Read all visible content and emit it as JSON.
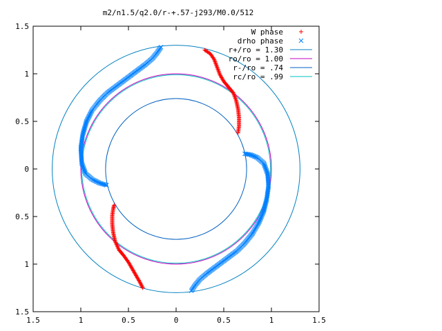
{
  "chart_data": {
    "type": "scatter",
    "title": "m2/n1.5/q2.0/r-+.57-j293/M0.0/512",
    "xlim": [
      -1.5,
      1.5
    ],
    "ylim": [
      -1.5,
      1.5
    ],
    "x_ticks": [
      {
        "value": -1.5,
        "label": "1.5"
      },
      {
        "value": -1.0,
        "label": "1"
      },
      {
        "value": -0.5,
        "label": "0.5"
      },
      {
        "value": 0,
        "label": "0"
      },
      {
        "value": 0.5,
        "label": "0.5"
      },
      {
        "value": 1.0,
        "label": "1"
      },
      {
        "value": 1.5,
        "label": "1.5"
      }
    ],
    "y_ticks": [
      {
        "value": 1.5,
        "label": "1.5"
      },
      {
        "value": 1.0,
        "label": "1"
      },
      {
        "value": 0.5,
        "label": "0.5"
      },
      {
        "value": 0,
        "label": "0"
      },
      {
        "value": -0.5,
        "label": "0.5"
      },
      {
        "value": -1.0,
        "label": "1"
      },
      {
        "value": -1.5,
        "label": "1.5"
      }
    ],
    "grid": false,
    "legend_position": "top-right",
    "series": [
      {
        "name": "W phase",
        "marker": "plus",
        "color": "#ff0000",
        "segments": [
          [
            [
              0.3,
              1.25
            ],
            [
              0.36,
              1.21
            ],
            [
              0.4,
              1.15
            ],
            [
              0.43,
              1.07
            ],
            [
              0.46,
              0.99
            ],
            [
              0.5,
              0.92
            ],
            [
              0.55,
              0.86
            ],
            [
              0.6,
              0.8
            ],
            [
              0.63,
              0.72
            ],
            [
              0.65,
              0.63
            ],
            [
              0.66,
              0.54
            ],
            [
              0.66,
              0.45
            ],
            [
              0.65,
              0.38
            ]
          ],
          [
            [
              -0.35,
              -1.25
            ],
            [
              -0.38,
              -1.19
            ],
            [
              -0.42,
              -1.12
            ],
            [
              -0.46,
              -1.05
            ],
            [
              -0.5,
              -0.98
            ],
            [
              -0.55,
              -0.91
            ],
            [
              -0.6,
              -0.85
            ],
            [
              -0.64,
              -0.76
            ],
            [
              -0.66,
              -0.67
            ],
            [
              -0.67,
              -0.58
            ],
            [
              -0.67,
              -0.49
            ],
            [
              -0.66,
              -0.42
            ],
            [
              -0.65,
              -0.38
            ]
          ]
        ]
      },
      {
        "name": "drho phase",
        "marker": "cross",
        "color": "#0080ff",
        "segments": [
          [
            [
              -0.16,
              1.28
            ],
            [
              -0.2,
              1.22
            ],
            [
              -0.25,
              1.16
            ],
            [
              -0.32,
              1.1
            ],
            [
              -0.4,
              1.04
            ],
            [
              -0.48,
              0.98
            ],
            [
              -0.56,
              0.92
            ],
            [
              -0.64,
              0.86
            ],
            [
              -0.72,
              0.8
            ],
            [
              -0.8,
              0.72
            ],
            [
              -0.88,
              0.62
            ],
            [
              -0.94,
              0.5
            ],
            [
              -0.98,
              0.36
            ],
            [
              -1.0,
              0.22
            ],
            [
              -0.99,
              0.06
            ],
            [
              -0.95,
              -0.05
            ],
            [
              -0.88,
              -0.11
            ],
            [
              -0.8,
              -0.15
            ],
            [
              -0.73,
              -0.17
            ]
          ],
          [
            [
              0.16,
              -1.28
            ],
            [
              0.2,
              -1.22
            ],
            [
              0.25,
              -1.16
            ],
            [
              0.32,
              -1.1
            ],
            [
              0.4,
              -1.04
            ],
            [
              0.48,
              -0.98
            ],
            [
              0.56,
              -0.92
            ],
            [
              0.64,
              -0.86
            ],
            [
              0.72,
              -0.78
            ],
            [
              0.8,
              -0.68
            ],
            [
              0.87,
              -0.56
            ],
            [
              0.92,
              -0.44
            ],
            [
              0.95,
              -0.32
            ],
            [
              0.97,
              -0.18
            ],
            [
              0.96,
              -0.05
            ],
            [
              0.92,
              0.06
            ],
            [
              0.85,
              0.12
            ],
            [
              0.78,
              0.15
            ],
            [
              0.72,
              0.16
            ]
          ]
        ]
      }
    ],
    "circles": [
      {
        "name": "r+/ro = 1.30",
        "radius": 1.3,
        "color": "#0080c0"
      },
      {
        "name": "ro/ro = 1.00",
        "radius": 1.0,
        "color": "#c000c0"
      },
      {
        "name": "r-/ro = .74",
        "radius": 0.74,
        "color": "#0060c0"
      },
      {
        "name": "rc/ro = .99",
        "radius": 0.99,
        "color": "#00c0c0"
      }
    ]
  }
}
